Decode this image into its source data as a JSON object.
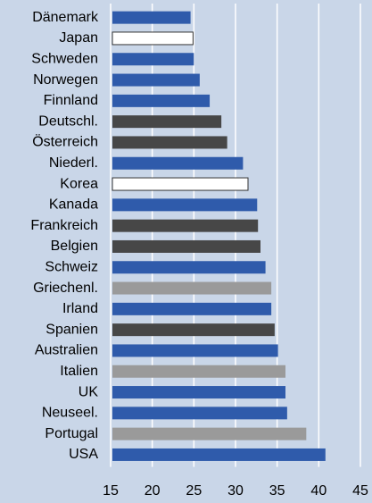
{
  "chart_data": {
    "type": "barh",
    "categories": [
      "Dänemark",
      "Japan",
      "Schweden",
      "Norwegen",
      "Finnland",
      "Deutschl.",
      "Österreich",
      "Niederl.",
      "Korea",
      "Kanada",
      "Frankreich",
      "Belgien",
      "Schweiz",
      "Griechenl.",
      "Irland",
      "Spanien",
      "Australien",
      "Italien",
      "UK",
      "Neuseel.",
      "Portugal",
      "USA"
    ],
    "values": [
      24.6,
      24.9,
      25.0,
      25.7,
      26.9,
      28.3,
      29.0,
      30.9,
      31.5,
      32.6,
      32.7,
      33.0,
      33.6,
      34.3,
      34.3,
      34.7,
      35.1,
      36.0,
      36.0,
      36.2,
      38.5,
      40.8
    ],
    "colors": [
      "#2f5bab",
      "#ffffff",
      "#2f5bab",
      "#2f5bab",
      "#2f5bab",
      "#474747",
      "#474747",
      "#2f5bab",
      "#ffffff",
      "#2f5bab",
      "#474747",
      "#474747",
      "#2f5bab",
      "#9a9a9a",
      "#2f5bab",
      "#474747",
      "#2f5bab",
      "#9a9a9a",
      "#2f5bab",
      "#2f5bab",
      "#9a9a9a",
      "#2f5bab"
    ],
    "xlim": [
      15,
      45
    ],
    "xticks": [
      15,
      20,
      25,
      30,
      35,
      40,
      45
    ],
    "grid": true
  }
}
